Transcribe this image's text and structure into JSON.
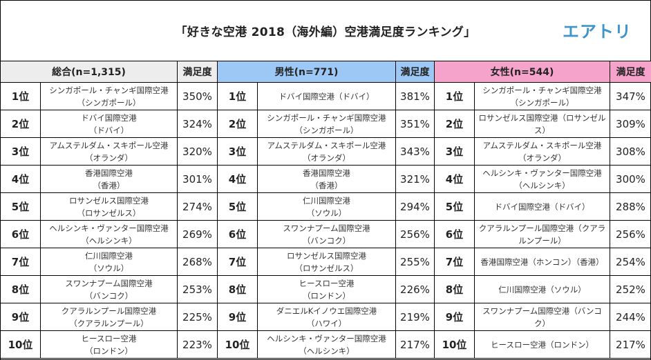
{
  "header": {
    "title": "「好きな空港 2018（海外編）空港満足度ランキング」",
    "logo": "エアトリ"
  },
  "colors": {
    "total_header_bg": "#ededed",
    "male_header_bg": "#9dc8f5",
    "female_header_bg": "#f6a3cc",
    "logo_color": "#3d95c9"
  },
  "groups": [
    {
      "label": "総合(n=1,315)",
      "score_header": "満足度",
      "rows": [
        {
          "rank": "1位",
          "name": "シンガポール・チャンギ国際空港",
          "sub": "（シンガポール）",
          "pct": "350%"
        },
        {
          "rank": "2位",
          "name": "ドバイ国際空港",
          "sub": "（ドバイ）",
          "pct": "324%"
        },
        {
          "rank": "3位",
          "name": "アムステルダム・スキポール空港",
          "sub": "（オランダ）",
          "pct": "320%"
        },
        {
          "rank": "4位",
          "name": "香港国際空港",
          "sub": "（香港）",
          "pct": "301%"
        },
        {
          "rank": "5位",
          "name": "ロサンゼルス国際空港",
          "sub": "（ロサンゼルス）",
          "pct": "274%"
        },
        {
          "rank": "6位",
          "name": "ヘルシンキ・ヴァンター国際空港",
          "sub": "（ヘルシンキ）",
          "pct": "269%"
        },
        {
          "rank": "7位",
          "name": "仁川国際空港",
          "sub": "（ソウル）",
          "pct": "268%"
        },
        {
          "rank": "8位",
          "name": "スワンナプーム国際空港",
          "sub": "（バンコク）",
          "pct": "253%"
        },
        {
          "rank": "9位",
          "name": "クアラルンプール国際空港",
          "sub": "（クアラルンプール）",
          "pct": "225%"
        },
        {
          "rank": "10位",
          "name": "ヒースロー空港",
          "sub": "（ロンドン）",
          "pct": "223%"
        }
      ]
    },
    {
      "label": "男性(n=771)",
      "score_header": "満足度",
      "rows": [
        {
          "rank": "1位",
          "name": "ドバイ国際空港（ドバイ）",
          "sub": "",
          "pct": "381%"
        },
        {
          "rank": "2位",
          "name": "シンガポール・チャンギ国際空港",
          "sub": "（シンガポール）",
          "pct": "351%"
        },
        {
          "rank": "3位",
          "name": "アムステルダム・スキポール空港",
          "sub": "（オランダ）",
          "pct": "343%"
        },
        {
          "rank": "4位",
          "name": "香港国際空港",
          "sub": "（香港）",
          "pct": "321%"
        },
        {
          "rank": "5位",
          "name": "仁川国際空港",
          "sub": "（ソウル）",
          "pct": "294%"
        },
        {
          "rank": "6位",
          "name": "スワンナプーム国際空港",
          "sub": "（バンコク）",
          "pct": "256%"
        },
        {
          "rank": "7位",
          "name": "ロサンゼルス国際空港",
          "sub": "（ロサンゼルス）",
          "pct": "255%"
        },
        {
          "rank": "8位",
          "name": "ヒースロー空港",
          "sub": "（ロンドン）",
          "pct": "226%"
        },
        {
          "rank": "9位",
          "name": "ダニエルKイノウエ国際空港",
          "sub": "（ハワイ）",
          "pct": "219%"
        },
        {
          "rank": "10位",
          "name": "ヘルシンキ・ヴァンター国際空港",
          "sub": "（ヘルシンキ）",
          "pct": "217%"
        }
      ]
    },
    {
      "label": "女性(n=544)",
      "score_header": "満足度",
      "rows": [
        {
          "rank": "1位",
          "name": "シンガポール・チャンギ国際空港",
          "sub": "（シンガポール）",
          "pct": "347%"
        },
        {
          "rank": "2位",
          "name": "ロサンゼルス国際空港（ロサンゼル",
          "sub": "ス）",
          "pct": "309%"
        },
        {
          "rank": "3位",
          "name": "アムステルダム・スキポール空港",
          "sub": "（オランダ）",
          "pct": "308%"
        },
        {
          "rank": "4位",
          "name": "ヘルシンキ・ヴァンター国際空港",
          "sub": "（ヘルシンキ）",
          "pct": "300%"
        },
        {
          "rank": "5位",
          "name": "ドバイ国際空港（ドバイ）",
          "sub": "",
          "pct": "288%"
        },
        {
          "rank": "6位",
          "name": "クアラルンプール国際空港（クアラ",
          "sub": "ルンプール）",
          "pct": "256%"
        },
        {
          "rank": "7位",
          "name": "香港国際空港（ホンコン）（香港）",
          "sub": "",
          "pct": "254%"
        },
        {
          "rank": "8位",
          "name": "仁川国際空港（ソウル）",
          "sub": "",
          "pct": "252%"
        },
        {
          "rank": "9位",
          "name": "スワンナプーム国際空港（バンコ",
          "sub": "ク）",
          "pct": "244%"
        },
        {
          "rank": "10位",
          "name": "ヒースロー空港（ロンドン）",
          "sub": "",
          "pct": "217%"
        }
      ]
    }
  ]
}
